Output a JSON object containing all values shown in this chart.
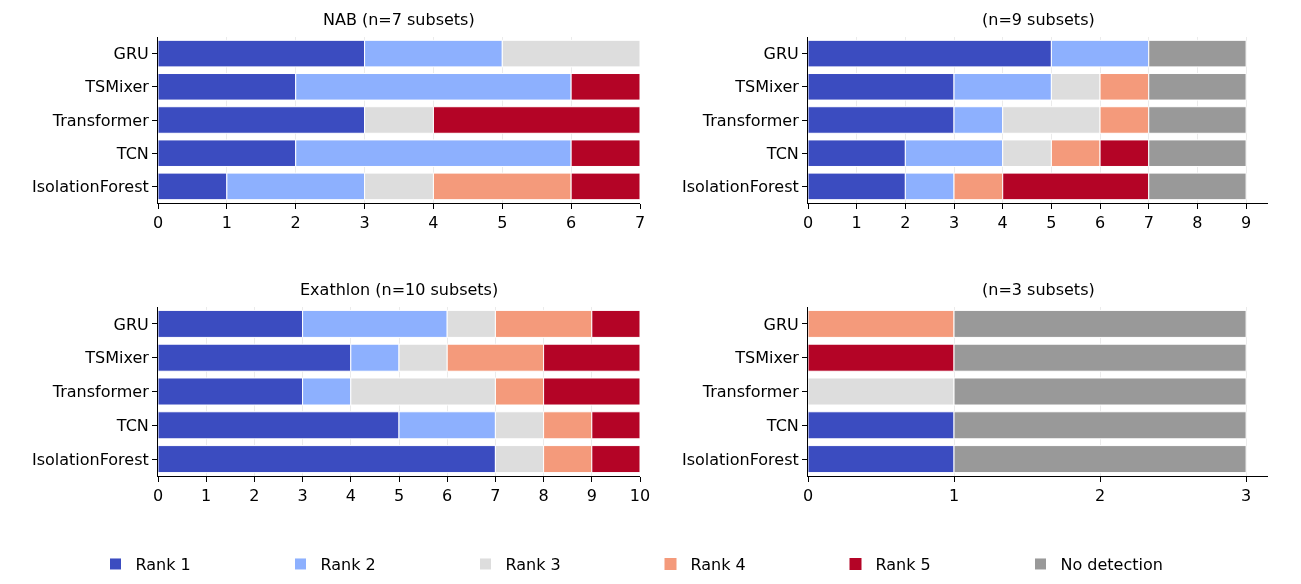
{
  "chart_data": [
    {
      "type": "bar",
      "title": "NAB (n=7 subsets)",
      "orientation": "horizontal",
      "stacked": true,
      "grid": "x",
      "legend": "bottom",
      "categories": [
        "GRU",
        "TSMixer",
        "Transformer",
        "TCN",
        "IsolationForest"
      ],
      "xlim": [
        0,
        7
      ],
      "xticks": [
        0,
        1,
        2,
        3,
        4,
        5,
        6,
        7
      ],
      "series": [
        {
          "name": "Rank 1",
          "color": "#3b4cc0",
          "values": [
            3,
            2,
            3,
            2,
            1
          ]
        },
        {
          "name": "Rank 2",
          "color": "#8db0fe",
          "values": [
            2,
            4,
            0,
            4,
            2
          ]
        },
        {
          "name": "Rank 3",
          "color": "#dddddd",
          "values": [
            2,
            0,
            1,
            0,
            1
          ]
        },
        {
          "name": "Rank 4",
          "color": "#f49a7b",
          "values": [
            0,
            0,
            0,
            0,
            2
          ]
        },
        {
          "name": "Rank 5",
          "color": "#b40426",
          "values": [
            0,
            1,
            3,
            1,
            1
          ]
        }
      ]
    },
    {
      "type": "bar",
      "title": "(n=9 subsets)",
      "orientation": "horizontal",
      "stacked": true,
      "grid": "x",
      "legend": "bottom",
      "categories": [
        "GRU",
        "TSMixer",
        "Transformer",
        "TCN",
        "IsolationForest"
      ],
      "xlim": [
        0,
        9.45
      ],
      "xticks": [
        0,
        1,
        2,
        3,
        4,
        5,
        6,
        7,
        8,
        9
      ],
      "series": [
        {
          "name": "Rank 1",
          "color": "#3b4cc0",
          "values": [
            5,
            3,
            3,
            2,
            2
          ]
        },
        {
          "name": "Rank 2",
          "color": "#8db0fe",
          "values": [
            2,
            2,
            1,
            2,
            1
          ]
        },
        {
          "name": "Rank 3",
          "color": "#dddddd",
          "values": [
            0,
            1,
            2,
            1,
            0
          ]
        },
        {
          "name": "Rank 4",
          "color": "#f49a7b",
          "values": [
            0,
            1,
            1,
            1,
            1
          ]
        },
        {
          "name": "Rank 5",
          "color": "#b40426",
          "values": [
            0,
            0,
            0,
            1,
            3
          ]
        },
        {
          "name": "No detection",
          "color": "#999999",
          "values": [
            2,
            2,
            2,
            2,
            2
          ]
        }
      ]
    },
    {
      "type": "bar",
      "title": "Exathlon (n=10 subsets)",
      "orientation": "horizontal",
      "stacked": true,
      "grid": "x",
      "legend": "bottom",
      "categories": [
        "GRU",
        "TSMixer",
        "Transformer",
        "TCN",
        "IsolationForest"
      ],
      "xlim": [
        0,
        10
      ],
      "xticks": [
        0,
        1,
        2,
        3,
        4,
        5,
        6,
        7,
        8,
        9,
        10
      ],
      "series": [
        {
          "name": "Rank 1",
          "color": "#3b4cc0",
          "values": [
            3,
            4,
            3,
            5,
            7
          ]
        },
        {
          "name": "Rank 2",
          "color": "#8db0fe",
          "values": [
            3,
            1,
            1,
            2,
            0
          ]
        },
        {
          "name": "Rank 3",
          "color": "#dddddd",
          "values": [
            1,
            1,
            3,
            1,
            1
          ]
        },
        {
          "name": "Rank 4",
          "color": "#f49a7b",
          "values": [
            2,
            2,
            1,
            1,
            1
          ]
        },
        {
          "name": "Rank 5",
          "color": "#b40426",
          "values": [
            1,
            2,
            2,
            1,
            1
          ]
        }
      ]
    },
    {
      "type": "bar",
      "title": "(n=3 subsets)",
      "orientation": "horizontal",
      "stacked": true,
      "grid": "x",
      "legend": "bottom",
      "categories": [
        "GRU",
        "TSMixer",
        "Transformer",
        "TCN",
        "IsolationForest"
      ],
      "xlim": [
        0,
        3.15
      ],
      "xticks": [
        0,
        1,
        2,
        3
      ],
      "series": [
        {
          "name": "Rank 1",
          "color": "#3b4cc0",
          "values": [
            0,
            0,
            0,
            1,
            1
          ]
        },
        {
          "name": "Rank 3",
          "color": "#dddddd",
          "values": [
            0,
            0,
            1,
            0,
            0
          ]
        },
        {
          "name": "Rank 4",
          "color": "#f49a7b",
          "values": [
            1,
            0,
            0,
            0,
            0
          ]
        },
        {
          "name": "Rank 5",
          "color": "#b40426",
          "values": [
            0,
            1,
            0,
            0,
            0
          ]
        },
        {
          "name": "No detection",
          "color": "#999999",
          "values": [
            2,
            2,
            2,
            2,
            2
          ]
        }
      ]
    }
  ]
}
